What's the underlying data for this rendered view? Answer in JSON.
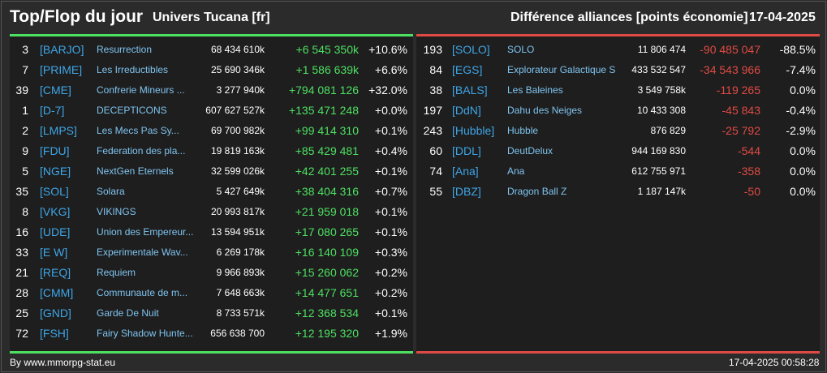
{
  "header": {
    "title": "Top/Flop du jour",
    "universe": "Univers Tucana [fr]",
    "metric": "Différence alliances [points économie]",
    "date": "17-04-2025"
  },
  "colors": {
    "gain": "#4ee062",
    "loss": "#e04a44",
    "tag": "#3ea6e8",
    "name": "#7fc4f0"
  },
  "top": [
    {
      "rank": "3",
      "tag": "[BARJO]",
      "name": "Resurrection",
      "points": "68 434 610k",
      "diff": "+6 545 350k",
      "pct": "+10.6%"
    },
    {
      "rank": "7",
      "tag": "[PRIME]",
      "name": "Les Irreductibles",
      "points": "25 690 346k",
      "diff": "+1 586 639k",
      "pct": "+6.6%"
    },
    {
      "rank": "39",
      "tag": "[CME]",
      "name": "Confrerie Mineurs ...",
      "points": "3 277 940k",
      "diff": "+794 081 126",
      "pct": "+32.0%"
    },
    {
      "rank": "1",
      "tag": "[D-7]",
      "name": "DECEPTICONS",
      "points": "607 627 527k",
      "diff": "+135 471 248",
      "pct": "+0.0%"
    },
    {
      "rank": "2",
      "tag": "[LMPS]",
      "name": "Les Mecs Pas Sy...",
      "points": "69 700 982k",
      "diff": "+99 414 310",
      "pct": "+0.1%"
    },
    {
      "rank": "9",
      "tag": "[FDU]",
      "name": "Federation des pla...",
      "points": "19 819 163k",
      "diff": "+85 429 481",
      "pct": "+0.4%"
    },
    {
      "rank": "5",
      "tag": "[NGE]",
      "name": "NextGen Eternels",
      "points": "32 599 026k",
      "diff": "+42 401 255",
      "pct": "+0.1%"
    },
    {
      "rank": "35",
      "tag": "[SOL]",
      "name": "Solara",
      "points": "5 427 649k",
      "diff": "+38 404 316",
      "pct": "+0.7%"
    },
    {
      "rank": "8",
      "tag": "[VKG]",
      "name": "VIKINGS",
      "points": "20 993 817k",
      "diff": "+21 959 018",
      "pct": "+0.1%"
    },
    {
      "rank": "16",
      "tag": "[UDE]",
      "name": "Union des Empereur...",
      "points": "13 594 951k",
      "diff": "+17 080 265",
      "pct": "+0.1%"
    },
    {
      "rank": "33",
      "tag": "[E W]",
      "name": "Experimentale Wav...",
      "points": "6 269 178k",
      "diff": "+16 140 109",
      "pct": "+0.3%"
    },
    {
      "rank": "21",
      "tag": "[REQ]",
      "name": "Requiem",
      "points": "9 966 893k",
      "diff": "+15 260 062",
      "pct": "+0.2%"
    },
    {
      "rank": "28",
      "tag": "[CMM]",
      "name": "Communaute de m...",
      "points": "7 648 663k",
      "diff": "+14 477 651",
      "pct": "+0.2%"
    },
    {
      "rank": "25",
      "tag": "[GND]",
      "name": "Garde De Nuit",
      "points": "8 733 571k",
      "diff": "+12 368 534",
      "pct": "+0.1%"
    },
    {
      "rank": "72",
      "tag": "[FSH]",
      "name": "Fairy Shadow Hunte...",
      "points": "656 638 700",
      "diff": "+12 195 320",
      "pct": "+1.9%"
    }
  ],
  "flop": [
    {
      "rank": "193",
      "tag": "[SOLO]",
      "name": "SOLO",
      "points": "11 806 474",
      "diff": "-90 485 047",
      "pct": "-88.5%"
    },
    {
      "rank": "84",
      "tag": "[EGS]",
      "name": "Explorateur Galactique S",
      "points": "433 532 547",
      "diff": "-34 543 966",
      "pct": "-7.4%"
    },
    {
      "rank": "38",
      "tag": "[BALS]",
      "name": "Les Baleines",
      "points": "3 549 758k",
      "diff": "-119 265",
      "pct": "0.0%"
    },
    {
      "rank": "197",
      "tag": "[DdN]",
      "name": "Dahu des Neiges",
      "points": "10 433 308",
      "diff": "-45 843",
      "pct": "-0.4%"
    },
    {
      "rank": "243",
      "tag": "[Hubble]",
      "name": "Hubble",
      "points": "876 829",
      "diff": "-25 792",
      "pct": "-2.9%"
    },
    {
      "rank": "60",
      "tag": "[DDL]",
      "name": "DeutDelux",
      "points": "944 169 830",
      "diff": "-544",
      "pct": "0.0%"
    },
    {
      "rank": "74",
      "tag": "[Ana]",
      "name": "Ana",
      "points": "612 755 971",
      "diff": "-358",
      "pct": "0.0%"
    },
    {
      "rank": "55",
      "tag": "[DBZ]",
      "name": "Dragon Ball Z",
      "points": "1 187 147k",
      "diff": "-50",
      "pct": "0.0%"
    }
  ],
  "footer": {
    "credit": "By www.mmorpg-stat.eu",
    "timestamp": "17-04-2025 00:58:28"
  }
}
